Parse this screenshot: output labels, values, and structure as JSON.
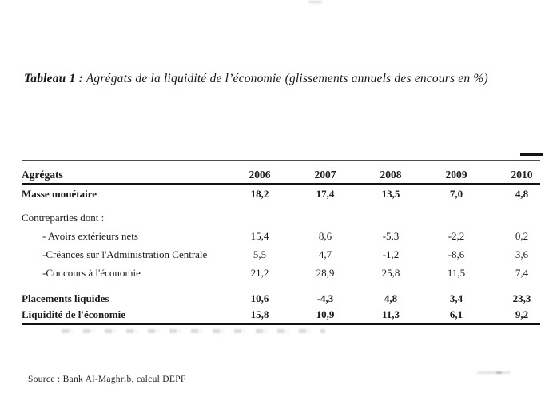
{
  "document": {
    "title": {
      "prefix": "Tableau 1 :",
      "text": " Agrégats de la liquidité de l’économie (glissements annuels des encours en %)"
    },
    "source": "Source : Bank Al-Maghrib, calcul DEPF"
  },
  "table": {
    "header": [
      "Agrégats",
      "2006",
      "2007",
      "2008",
      "2009",
      "2010"
    ],
    "rows": [
      {
        "label": "Masse monétaire",
        "values": [
          "18,2",
          "17,4",
          "13,5",
          "7,0",
          "4,8"
        ]
      },
      {
        "label": "Contreparties dont :",
        "values": [
          "",
          "",
          "",
          "",
          ""
        ]
      },
      {
        "label": "- Avoirs extérieurs nets",
        "values": [
          "15,4",
          "8,6",
          "-5,3",
          "-2,2",
          "0,2"
        ]
      },
      {
        "label": "-Créances sur l'Administration Centrale",
        "values": [
          "5,5",
          "4,7",
          "-1,2",
          "-8,6",
          "3,6"
        ]
      },
      {
        "label": "-Concours à l'économie",
        "values": [
          "21,2",
          "28,9",
          "25,8",
          "11,5",
          "7,4"
        ]
      },
      {
        "label": "Placements liquides",
        "values": [
          "10,6",
          "-4,3",
          "4,8",
          "3,4",
          "23,3"
        ]
      },
      {
        "label": "Liquidité de l'économie",
        "values": [
          "15,8",
          "10,9",
          "11,3",
          "6,1",
          "9,2"
        ]
      }
    ]
  }
}
